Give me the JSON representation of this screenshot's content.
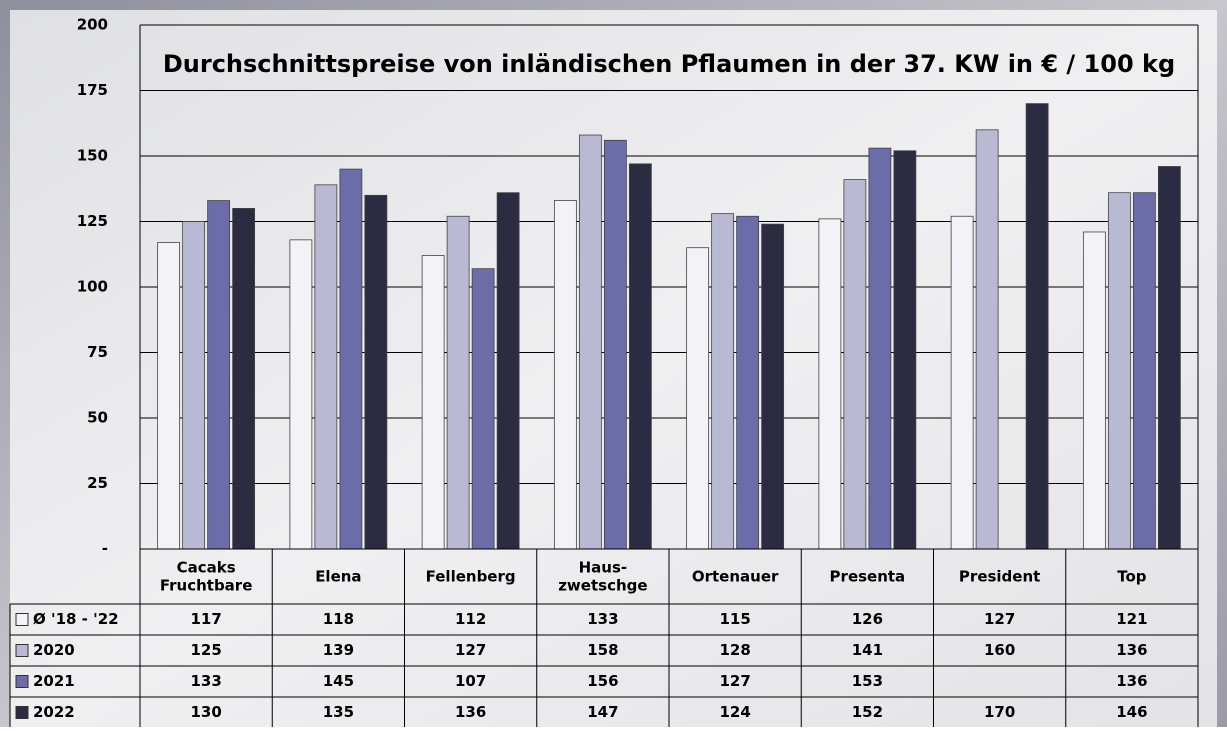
{
  "chart_data": {
    "type": "bar",
    "title": "Durchschnittspreise von inländischen Pflaumen in der 37. KW in € / 100 kg",
    "categories": [
      "Cacaks\nFruchtbare",
      "Elena",
      "Fellenberg",
      "Haus-\nzwetschge",
      "Ortenauer",
      "Presenta",
      "President",
      "Top"
    ],
    "series": [
      {
        "name": "Ø '18 - '22",
        "color": "#f2f2f7",
        "values": [
          117,
          118,
          112,
          133,
          115,
          126,
          127,
          121
        ]
      },
      {
        "name": "2020",
        "color": "#b9b9d3",
        "values": [
          125,
          139,
          127,
          158,
          128,
          141,
          160,
          136
        ]
      },
      {
        "name": "2021",
        "color": "#6c6ca8",
        "values": [
          133,
          145,
          107,
          156,
          127,
          153,
          null,
          136
        ]
      },
      {
        "name": "2022",
        "color": "#2b2b42",
        "values": [
          130,
          135,
          136,
          147,
          124,
          152,
          170,
          146
        ]
      }
    ],
    "ylim": [
      0,
      200
    ],
    "yticks": [
      {
        "value": 0,
        "label": "-"
      },
      25,
      50,
      75,
      100,
      125,
      150,
      175,
      200
    ],
    "grid": true
  }
}
